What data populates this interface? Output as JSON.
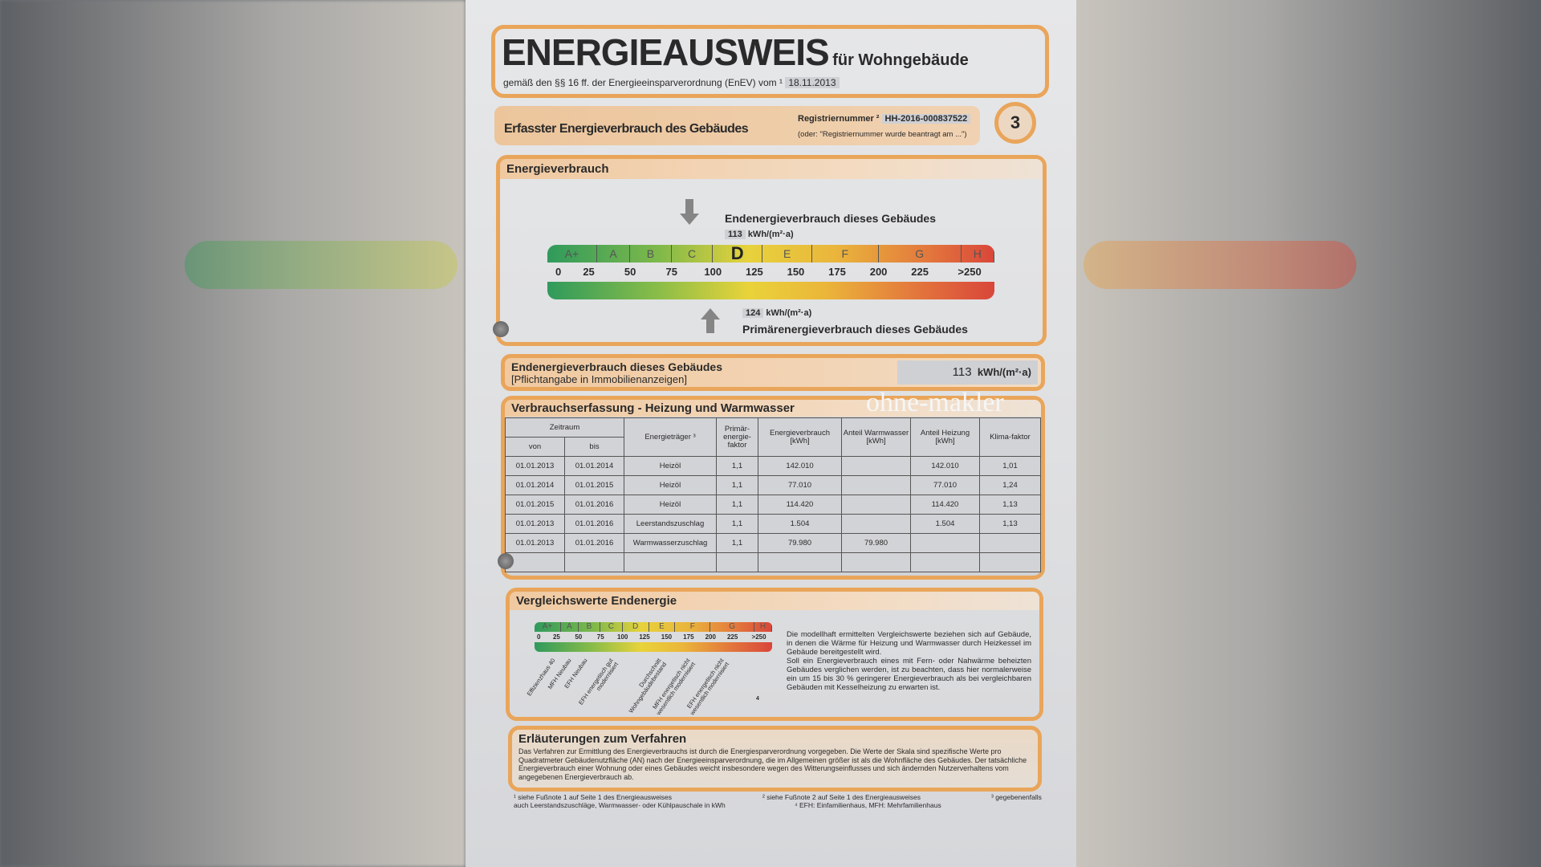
{
  "title": {
    "main": "ENERGIEAUSWEIS",
    "suffix": "für Wohngebäude",
    "subtitle": "gemäß den §§ 16 ff. der Energieeinsparverordnung (EnEV) vom ¹",
    "date": "18.11.2013"
  },
  "section": {
    "heading": "Erfasster Energieverbrauch des Gebäudes",
    "reg_label": "Registriernummer ²",
    "reg_value": "HH-2016-000837522",
    "reg_note": "(oder: \"Registriernummer wurde beantragt am ...\")",
    "page_number": "3"
  },
  "consumption": {
    "heading": "Energieverbrauch",
    "end_label": "Endenergieverbrauch dieses Gebäudes",
    "end_value": "113",
    "unit": "kWh/(m²·a)",
    "primary_label": "Primärenergieverbrauch dieses Gebäudes",
    "primary_value": "124",
    "current_class": "D",
    "classes": [
      "A+",
      "A",
      "B",
      "C",
      "D",
      "E",
      "F",
      "G",
      "H"
    ],
    "ticks": [
      "0",
      "25",
      "50",
      "75",
      "100",
      "125",
      "150",
      "175",
      "200",
      "225",
      ">250"
    ]
  },
  "endenergie": {
    "label": "Endenergieverbrauch dieses Gebäudes",
    "note": "[Pflichtangabe in Immobilienanzeigen]",
    "value": "113",
    "unit": "kWh/(m²·a)"
  },
  "table": {
    "heading": "Verbrauchserfassung - Heizung und Warmwasser",
    "watermark": "ohne-makler",
    "headers": {
      "zeitraum": "Zeitraum",
      "von": "von",
      "bis": "bis",
      "traeger": "Energieträger ³",
      "pef": "Primär-energie-faktor",
      "verbrauch": "Energieverbrauch [kWh]",
      "ww": "Anteil Warmwasser [kWh]",
      "heizung": "Anteil Heizung [kWh]",
      "klima": "Klima-faktor"
    },
    "rows": [
      [
        "01.01.2013",
        "01.01.2014",
        "Heizöl",
        "1,1",
        "142.010",
        "",
        "142.010",
        "1,01"
      ],
      [
        "01.01.2014",
        "01.01.2015",
        "Heizöl",
        "1,1",
        "77.010",
        "",
        "77.010",
        "1,24"
      ],
      [
        "01.01.2015",
        "01.01.2016",
        "Heizöl",
        "1,1",
        "114.420",
        "",
        "114.420",
        "1,13"
      ],
      [
        "01.01.2013",
        "01.01.2016",
        "Leerstandszuschlag",
        "1,1",
        "1.504",
        "",
        "1.504",
        "1,13"
      ],
      [
        "01.01.2013",
        "01.01.2016",
        "Warmwasserzuschlag",
        "1,1",
        "79.980",
        "79.980",
        "",
        ""
      ],
      [
        "",
        "",
        "",
        "",
        "",
        "",
        "",
        ""
      ]
    ]
  },
  "vergleich": {
    "heading": "Vergleichswerte Endenergie",
    "labels": [
      "Effizienzhaus 40",
      "MFH Neubau",
      "EFH Neubau",
      "EFH energetisch gut modernisiert",
      "Durchschnitt Wohngebäudebestand",
      "MFH energetisch nicht wesentlich modernisiert",
      "EFH energetisch nicht wesentlich modernisiert"
    ],
    "footnote_mark": "4",
    "text": "Die modellhaft ermittelten Vergleichswerte beziehen sich auf Gebäude, in denen die Wärme für Heizung und Warmwasser durch Heizkessel im Gebäude bereitgestellt wird.",
    "text2": "Soll ein Energieverbrauch eines mit Fern- oder Nahwärme beheizten Gebäudes verglichen werden, ist zu beachten, dass hier normalerweise ein um 15 bis 30 % geringerer Energieverbrauch als bei vergleichbaren Gebäuden mit Kesselheizung zu erwarten ist."
  },
  "erlaeuterung": {
    "heading": "Erläuterungen zum Verfahren",
    "text": "Das Verfahren zur Ermittlung des Energieverbrauchs ist durch die Energiesparverordnung vorgegeben. Die Werte der Skala sind spezifische Werte pro Quadratmeter Gebäudenutzfläche (AN) nach der Energieeinsparverordnung, die im Allgemeinen größer ist als die Wohnfläche des Gebäudes. Der tatsächliche Energieverbrauch einer Wohnung oder eines Gebäudes weicht insbesondere wegen des Witterungseinflusses und sich ändernden Nutzerverhaltens vom angegebenen Energieverbrauch ab."
  },
  "footnotes": {
    "f1": "¹ siehe Fußnote 1 auf Seite 1 des Energieausweises",
    "f1b": "auch Leerstandszuschläge, Warmwasser- oder Kühlpauschale in kWh",
    "f2": "² siehe Fußnote 2 auf Seite 1 des Energieausweises",
    "f4": "⁴ EFH: Einfamilienhaus, MFH: Mehrfamilienhaus",
    "f3": "³ gegebenenfalls"
  },
  "colors": {
    "accent": "#e9a55a",
    "green": "#2e9a5a",
    "yellow": "#e8cf3a",
    "red": "#d94a3c"
  }
}
